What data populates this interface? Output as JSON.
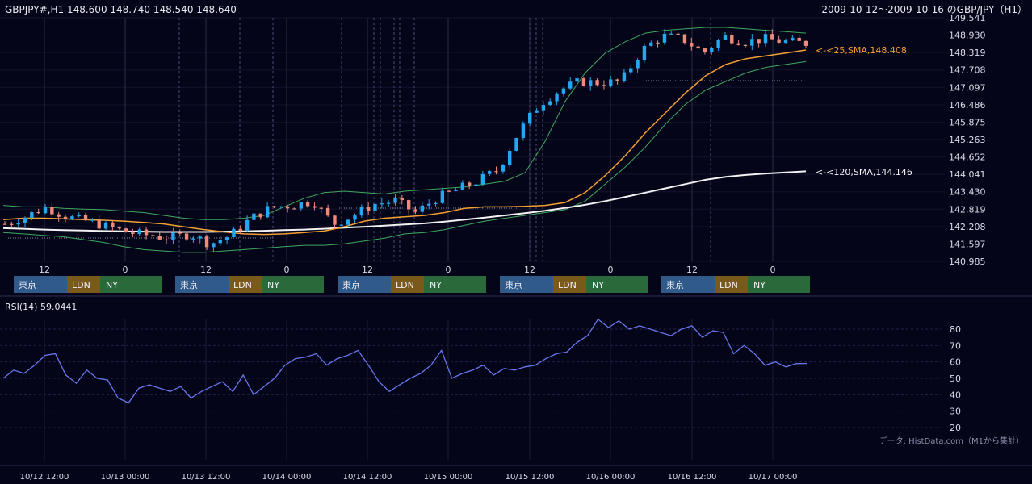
{
  "header": {
    "symbol_line": "GBPJPY#,H1 148.600 148.740 148.540 148.640",
    "period_line": "2009-10-12～2009-10-16 のGBP/JPY（H1）"
  },
  "price_pane": {
    "y_ticks": [
      "149.541",
      "148.930",
      "148.319",
      "147.708",
      "147.097",
      "146.486",
      "145.875",
      "145.263",
      "144.652",
      "144.041",
      "143.430",
      "142.819",
      "142.208",
      "141.597",
      "140.985"
    ],
    "x_hour_labels": [
      "12",
      "0",
      "12",
      "0",
      "12",
      "0",
      "12",
      "0",
      "12",
      "0"
    ],
    "sma25_label": "<-<25,SMA,148.408",
    "sma120_label": "<-<120,SMA,144.146",
    "sessions": [
      {
        "tokyo": "東京",
        "london": "LDN",
        "ny": "NY"
      },
      {
        "tokyo": "東京",
        "london": "LDN",
        "ny": "NY"
      },
      {
        "tokyo": "東京",
        "london": "LDN",
        "ny": "NY"
      },
      {
        "tokyo": "東京",
        "london": "LDN",
        "ny": "NY"
      },
      {
        "tokyo": "東京",
        "london": "LDN",
        "ny": "NY"
      }
    ]
  },
  "rsi_pane": {
    "title": "RSI(14) 59.0441",
    "y_ticks": [
      "80",
      "70",
      "60",
      "50",
      "40",
      "30",
      "20"
    ]
  },
  "footer": {
    "source_note": "データ: HistData.com（M1から集計）",
    "x_date_labels": [
      "10/12 12:00",
      "10/13 00:00",
      "10/13 12:00",
      "10/14 00:00",
      "10/14 12:00",
      "10/15 00:00",
      "10/15 12:00",
      "10/16 00:00",
      "10/16 12:00",
      "10/17 00:00"
    ]
  },
  "colors": {
    "background": "#050519",
    "up_candle": "#22a7f0",
    "down_candle": "#ef8a7a",
    "sma25": "#f5a033",
    "sma120": "#f2f2f2",
    "bollinger": "#3fa860",
    "rsi_line": "#6677ee",
    "tokyo": "#2f5a8a",
    "london": "#7a5a1a",
    "ny": "#2a6a3a"
  },
  "chart_data": [
    {
      "type": "line",
      "title": "GBPJPY#,H1 148.600 148.740 148.540 148.640",
      "subtitle": "2009-10-12～2009-10-16 のGBP/JPY（H1）",
      "ylim": [
        140.985,
        149.541
      ],
      "series": [
        {
          "name": "SMA 25",
          "values": [
            142.45,
            142.5,
            142.5,
            142.48,
            142.45,
            142.43,
            142.4,
            142.35,
            142.3,
            142.2,
            142.1,
            142.02,
            141.95,
            141.93,
            141.95,
            142.0,
            142.05,
            142.2,
            142.4,
            142.5,
            142.55,
            142.6,
            142.7,
            142.85,
            142.9,
            142.9,
            142.92,
            142.95,
            143.05,
            143.4,
            144.0,
            144.7,
            145.5,
            146.2,
            146.9,
            147.5,
            147.9,
            148.1,
            148.2,
            148.3,
            148.408
          ]
        },
        {
          "name": "SMA 120",
          "values": [
            142.15,
            142.13,
            142.1,
            142.08,
            142.07,
            142.05,
            142.04,
            142.03,
            142.02,
            142.02,
            142.02,
            142.03,
            142.04,
            142.06,
            142.08,
            142.1,
            142.13,
            142.17,
            142.2,
            142.24,
            142.28,
            142.32,
            142.38,
            142.45,
            142.52,
            142.6,
            142.68,
            142.76,
            142.86,
            142.97,
            143.1,
            143.25,
            143.4,
            143.55,
            143.7,
            143.85,
            143.95,
            144.02,
            144.07,
            144.11,
            144.146
          ]
        },
        {
          "name": "Bollinger upper",
          "values": [
            142.95,
            142.9,
            142.9,
            142.85,
            142.82,
            142.8,
            142.75,
            142.7,
            142.6,
            142.5,
            142.45,
            142.45,
            142.5,
            142.6,
            142.9,
            143.2,
            143.4,
            143.45,
            143.4,
            143.35,
            143.45,
            143.5,
            143.55,
            143.6,
            143.7,
            143.8,
            144.1,
            145.2,
            146.6,
            147.6,
            148.3,
            148.7,
            149.0,
            149.1,
            149.15,
            149.2,
            149.2,
            149.15,
            149.1,
            149.05,
            149.0
          ]
        },
        {
          "name": "Bollinger lower",
          "values": [
            142.0,
            141.95,
            141.9,
            141.85,
            141.75,
            141.65,
            141.5,
            141.4,
            141.35,
            141.3,
            141.3,
            141.35,
            141.4,
            141.45,
            141.5,
            141.55,
            141.55,
            141.6,
            141.7,
            141.8,
            141.95,
            142.0,
            142.1,
            142.25,
            142.4,
            142.5,
            142.6,
            142.7,
            142.8,
            143.1,
            143.7,
            144.3,
            145.0,
            145.8,
            146.5,
            147.0,
            147.3,
            147.6,
            147.8,
            147.9,
            148.0
          ]
        }
      ]
    },
    {
      "type": "line",
      "title": "RSI(14) 59.0441",
      "ylim": [
        20,
        90
      ],
      "series": [
        {
          "name": "RSI(14)",
          "values": [
            50,
            55,
            53,
            58,
            64,
            65,
            52,
            47,
            55,
            50,
            49,
            38,
            35,
            44,
            46,
            44,
            42,
            45,
            38,
            42,
            45,
            48,
            42,
            52,
            40,
            45,
            50,
            58,
            62,
            63,
            65,
            58,
            62,
            64,
            67,
            58,
            48,
            42,
            46,
            50,
            53,
            58,
            67,
            50,
            53,
            55,
            58,
            52,
            56,
            55,
            57,
            58,
            62,
            65,
            66,
            72,
            76,
            86,
            81,
            85,
            80,
            82,
            80,
            78,
            76,
            80,
            82,
            75,
            79,
            78,
            65,
            70,
            65,
            58,
            60,
            57,
            59,
            59.0441
          ]
        }
      ]
    }
  ]
}
